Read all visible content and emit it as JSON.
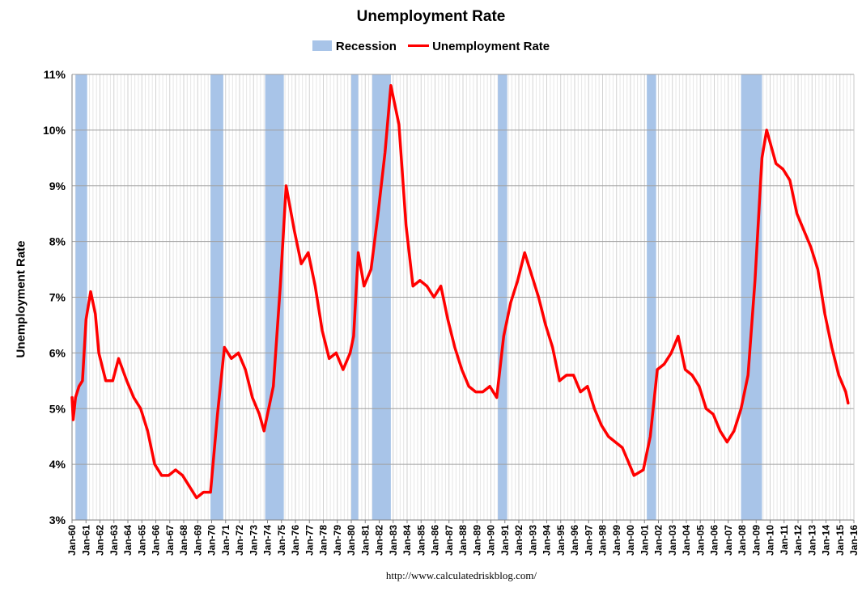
{
  "colors": {
    "recession": "#a8c4e8",
    "unemployment": "#ff0000",
    "grid": "#b0b0b0",
    "minor_grid": "#e6e6e6"
  },
  "chart_data": {
    "type": "line",
    "title": "Unemployment Rate",
    "xlabel": "",
    "ylabel": "Unemployment Rate",
    "source": "http://www.calculatedriskblog.com/",
    "legend": {
      "position": "top-center",
      "entries": [
        "Recession",
        "Unemployment Rate"
      ]
    },
    "ylim": [
      3,
      11
    ],
    "yticks": [
      3,
      4,
      5,
      6,
      7,
      8,
      9,
      10,
      11
    ],
    "ytick_labels": [
      "3%",
      "4%",
      "5%",
      "6%",
      "7%",
      "8%",
      "9%",
      "10%",
      "11%"
    ],
    "xlim": [
      "1960-01",
      "2016-01"
    ],
    "xtick_labels": [
      "Jan-60",
      "Jan-61",
      "Jan-62",
      "Jan-63",
      "Jan-64",
      "Jan-65",
      "Jan-66",
      "Jan-67",
      "Jan-68",
      "Jan-69",
      "Jan-70",
      "Jan-71",
      "Jan-72",
      "Jan-73",
      "Jan-74",
      "Jan-75",
      "Jan-76",
      "Jan-77",
      "Jan-78",
      "Jan-79",
      "Jan-80",
      "Jan-81",
      "Jan-82",
      "Jan-83",
      "Jan-84",
      "Jan-85",
      "Jan-86",
      "Jan-87",
      "Jan-88",
      "Jan-89",
      "Jan-90",
      "Jan-91",
      "Jan-92",
      "Jan-93",
      "Jan-94",
      "Jan-95",
      "Jan-96",
      "Jan-97",
      "Jan-98",
      "Jan-99",
      "Jan-00",
      "Jan-01",
      "Jan-02",
      "Jan-03",
      "Jan-04",
      "Jan-05",
      "Jan-06",
      "Jan-07",
      "Jan-08",
      "Jan-09",
      "Jan-10",
      "Jan-11",
      "Jan-12",
      "Jan-13",
      "Jan-14",
      "Jan-15",
      "Jan-16"
    ],
    "grid": true,
    "recessions": [
      {
        "start": "1960-04",
        "end": "1961-02"
      },
      {
        "start": "1969-12",
        "end": "1970-11"
      },
      {
        "start": "1973-11",
        "end": "1975-03"
      },
      {
        "start": "1980-01",
        "end": "1980-07"
      },
      {
        "start": "1981-07",
        "end": "1982-11"
      },
      {
        "start": "1990-07",
        "end": "1991-03"
      },
      {
        "start": "2001-03",
        "end": "2001-11"
      },
      {
        "start": "2007-12",
        "end": "2009-06"
      }
    ],
    "series": [
      {
        "name": "Unemployment Rate",
        "points": [
          [
            "1960-01",
            5.2
          ],
          [
            "1960-02",
            4.8
          ],
          [
            "1960-04",
            5.2
          ],
          [
            "1960-07",
            5.4
          ],
          [
            "1960-10",
            5.5
          ],
          [
            "1961-01",
            6.6
          ],
          [
            "1961-05",
            7.1
          ],
          [
            "1961-09",
            6.7
          ],
          [
            "1961-12",
            6.0
          ],
          [
            "1962-06",
            5.5
          ],
          [
            "1962-12",
            5.5
          ],
          [
            "1963-05",
            5.9
          ],
          [
            "1963-12",
            5.5
          ],
          [
            "1964-06",
            5.2
          ],
          [
            "1964-12",
            5.0
          ],
          [
            "1965-06",
            4.6
          ],
          [
            "1965-12",
            4.0
          ],
          [
            "1966-06",
            3.8
          ],
          [
            "1966-12",
            3.8
          ],
          [
            "1967-06",
            3.9
          ],
          [
            "1967-12",
            3.8
          ],
          [
            "1968-06",
            3.6
          ],
          [
            "1968-12",
            3.4
          ],
          [
            "1969-06",
            3.5
          ],
          [
            "1969-12",
            3.5
          ],
          [
            "1970-06",
            4.9
          ],
          [
            "1970-12",
            6.1
          ],
          [
            "1971-06",
            5.9
          ],
          [
            "1971-12",
            6.0
          ],
          [
            "1972-06",
            5.7
          ],
          [
            "1972-12",
            5.2
          ],
          [
            "1973-06",
            4.9
          ],
          [
            "1973-10",
            4.6
          ],
          [
            "1974-06",
            5.4
          ],
          [
            "1974-12",
            7.2
          ],
          [
            "1975-05",
            9.0
          ],
          [
            "1975-12",
            8.2
          ],
          [
            "1976-06",
            7.6
          ],
          [
            "1976-12",
            7.8
          ],
          [
            "1977-06",
            7.2
          ],
          [
            "1977-12",
            6.4
          ],
          [
            "1978-06",
            5.9
          ],
          [
            "1978-12",
            6.0
          ],
          [
            "1979-06",
            5.7
          ],
          [
            "1979-12",
            6.0
          ],
          [
            "1980-03",
            6.3
          ],
          [
            "1980-07",
            7.8
          ],
          [
            "1980-12",
            7.2
          ],
          [
            "1981-06",
            7.5
          ],
          [
            "1981-12",
            8.5
          ],
          [
            "1982-06",
            9.6
          ],
          [
            "1982-11",
            10.8
          ],
          [
            "1983-06",
            10.1
          ],
          [
            "1983-12",
            8.3
          ],
          [
            "1984-06",
            7.2
          ],
          [
            "1984-12",
            7.3
          ],
          [
            "1985-06",
            7.2
          ],
          [
            "1985-12",
            7.0
          ],
          [
            "1986-06",
            7.2
          ],
          [
            "1986-12",
            6.6
          ],
          [
            "1987-06",
            6.1
          ],
          [
            "1987-12",
            5.7
          ],
          [
            "1988-06",
            5.4
          ],
          [
            "1988-12",
            5.3
          ],
          [
            "1989-06",
            5.3
          ],
          [
            "1989-12",
            5.4
          ],
          [
            "1990-06",
            5.2
          ],
          [
            "1990-12",
            6.3
          ],
          [
            "1991-06",
            6.9
          ],
          [
            "1991-12",
            7.3
          ],
          [
            "1992-06",
            7.8
          ],
          [
            "1992-12",
            7.4
          ],
          [
            "1993-06",
            7.0
          ],
          [
            "1993-12",
            6.5
          ],
          [
            "1994-06",
            6.1
          ],
          [
            "1994-12",
            5.5
          ],
          [
            "1995-06",
            5.6
          ],
          [
            "1995-12",
            5.6
          ],
          [
            "1996-06",
            5.3
          ],
          [
            "1996-12",
            5.4
          ],
          [
            "1997-06",
            5.0
          ],
          [
            "1997-12",
            4.7
          ],
          [
            "1998-06",
            4.5
          ],
          [
            "1998-12",
            4.4
          ],
          [
            "1999-06",
            4.3
          ],
          [
            "1999-12",
            4.0
          ],
          [
            "2000-04",
            3.8
          ],
          [
            "2000-12",
            3.9
          ],
          [
            "2001-06",
            4.5
          ],
          [
            "2001-12",
            5.7
          ],
          [
            "2002-06",
            5.8
          ],
          [
            "2002-12",
            6.0
          ],
          [
            "2003-06",
            6.3
          ],
          [
            "2003-12",
            5.7
          ],
          [
            "2004-06",
            5.6
          ],
          [
            "2004-12",
            5.4
          ],
          [
            "2005-06",
            5.0
          ],
          [
            "2005-12",
            4.9
          ],
          [
            "2006-06",
            4.6
          ],
          [
            "2006-12",
            4.4
          ],
          [
            "2007-06",
            4.6
          ],
          [
            "2007-12",
            5.0
          ],
          [
            "2008-06",
            5.6
          ],
          [
            "2008-12",
            7.3
          ],
          [
            "2009-06",
            9.5
          ],
          [
            "2009-10",
            10.0
          ],
          [
            "2010-06",
            9.4
          ],
          [
            "2010-12",
            9.3
          ],
          [
            "2011-06",
            9.1
          ],
          [
            "2011-12",
            8.5
          ],
          [
            "2012-06",
            8.2
          ],
          [
            "2012-12",
            7.9
          ],
          [
            "2013-06",
            7.5
          ],
          [
            "2013-12",
            6.7
          ],
          [
            "2014-06",
            6.1
          ],
          [
            "2014-12",
            5.6
          ],
          [
            "2015-06",
            5.3
          ],
          [
            "2015-08",
            5.1
          ]
        ]
      }
    ]
  }
}
